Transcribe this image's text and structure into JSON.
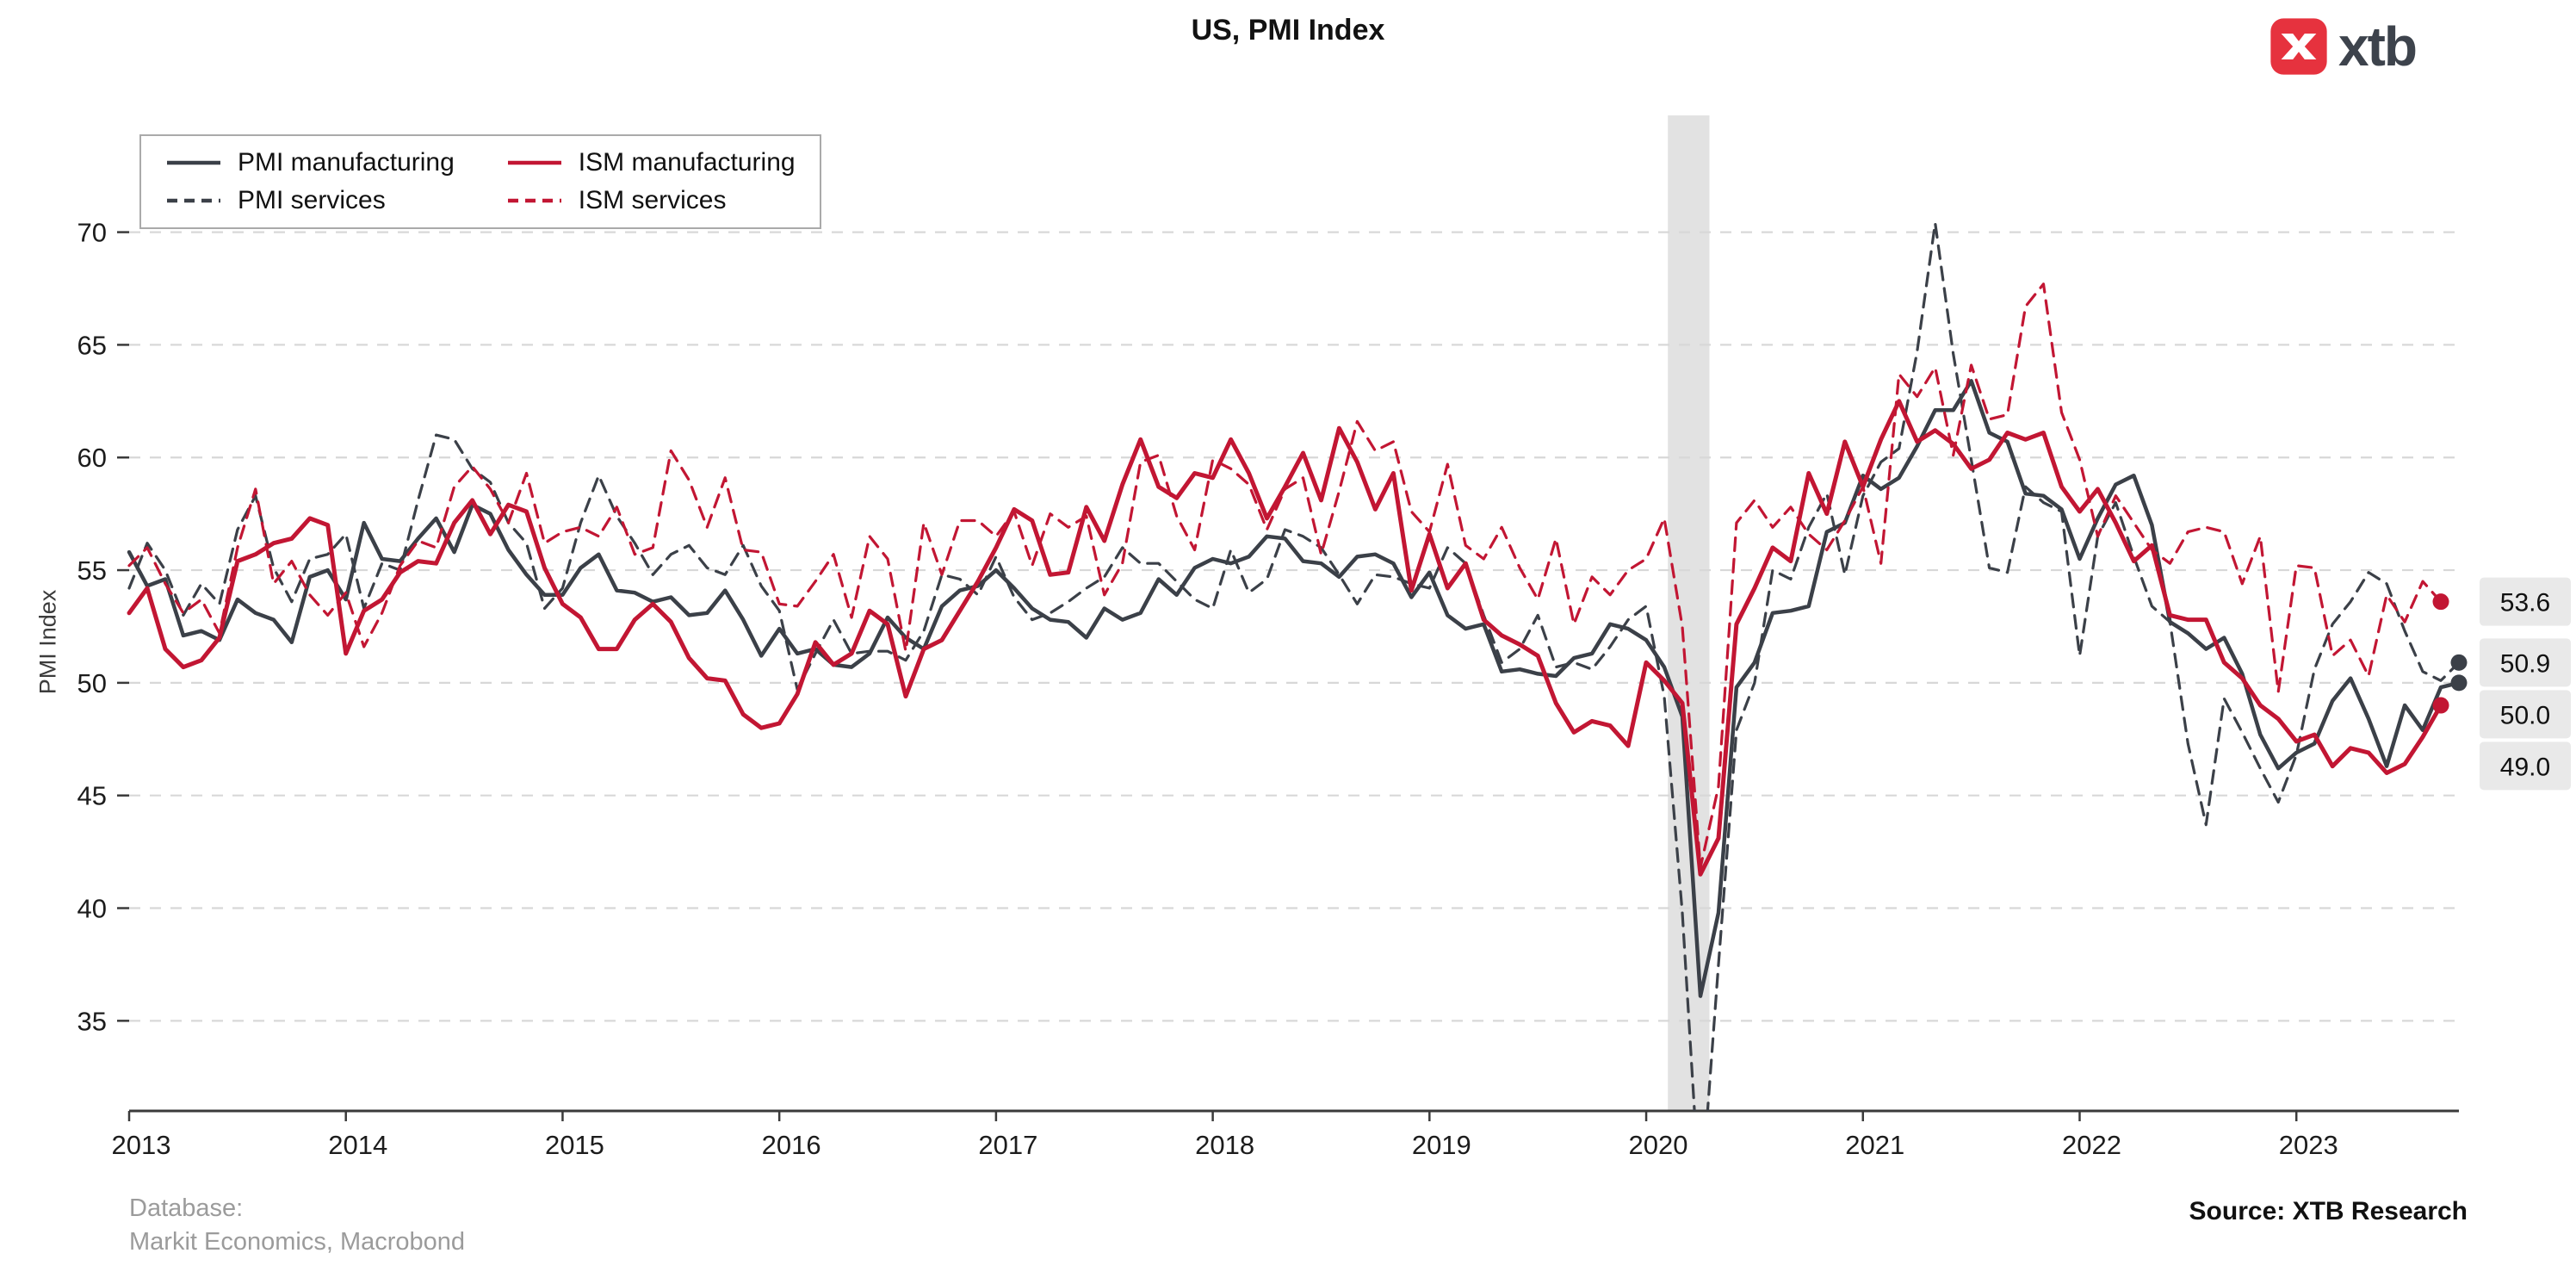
{
  "title": "US, PMI Index",
  "logo": {
    "text": "xtb",
    "icon_color": "#e6323e",
    "icon": "x-arrows-icon"
  },
  "footer": {
    "database_label": "Database:",
    "database_value": "Markit Economics, Macrobond",
    "source": "Source: XTB Research"
  },
  "colors": {
    "dark_series": "#3b4048",
    "red_series": "#c21633",
    "grid": "#d8d8d8",
    "axis": "#3a3a3a",
    "recession_band": "#e2e2e2",
    "end_label_bg": "#e9e9e9"
  },
  "chart_data": {
    "type": "line",
    "title": "US, PMI Index",
    "ylabel": "PMI Index",
    "x_start": "2013-01",
    "frequency": "monthly",
    "x_tick_labels": [
      "2013",
      "2014",
      "2015",
      "2016",
      "2017",
      "2018",
      "2019",
      "2020",
      "2021",
      "2022",
      "2023"
    ],
    "x_tick_month_indices": [
      0,
      12,
      24,
      36,
      48,
      60,
      72,
      84,
      96,
      108,
      120
    ],
    "yticks": [
      35,
      40,
      45,
      50,
      55,
      60,
      65,
      70
    ],
    "ylim": [
      31,
      74.8
    ],
    "grid": "dashed-horizontal",
    "legend_position": "top-left",
    "recession_band_month_range": [
      85.2,
      87.5
    ],
    "series": [
      {
        "name": "PMI manufacturing",
        "color": "#3b4048",
        "dashed": false,
        "width": 4.5,
        "values": [
          55.8,
          54.3,
          54.6,
          52.1,
          52.3,
          51.9,
          53.7,
          53.1,
          52.8,
          51.8,
          54.7,
          55.0,
          53.7,
          57.1,
          55.5,
          55.4,
          56.4,
          57.3,
          55.8,
          57.9,
          57.5,
          55.9,
          54.8,
          53.9,
          53.9,
          55.1,
          55.7,
          54.1,
          54.0,
          53.6,
          53.8,
          53.0,
          53.1,
          54.1,
          52.8,
          51.2,
          52.4,
          51.3,
          51.5,
          50.8,
          50.7,
          51.3,
          52.9,
          52.0,
          51.5,
          53.4,
          54.1,
          54.3,
          55.0,
          54.2,
          53.3,
          52.8,
          52.7,
          52.0,
          53.3,
          52.8,
          53.1,
          54.6,
          53.9,
          55.1,
          55.5,
          55.3,
          55.6,
          56.5,
          56.4,
          55.4,
          55.3,
          54.7,
          55.6,
          55.7,
          55.3,
          53.8,
          54.9,
          53.0,
          52.4,
          52.6,
          50.5,
          50.6,
          50.4,
          50.3,
          51.1,
          51.3,
          52.6,
          52.4,
          51.9,
          50.7,
          48.5,
          36.1,
          39.8,
          49.8,
          50.9,
          53.1,
          53.2,
          53.4,
          56.7,
          57.1,
          59.2,
          58.6,
          59.1,
          60.5,
          62.1,
          62.1,
          63.4,
          61.1,
          60.7,
          58.4,
          58.3,
          57.7,
          55.5,
          57.3,
          58.8,
          59.2,
          57.0,
          52.7,
          52.2,
          51.5,
          52.0,
          50.4,
          47.7,
          46.2,
          46.9,
          47.3,
          49.2,
          50.2,
          48.4,
          46.3,
          49.0,
          47.9,
          49.8,
          50.0
        ]
      },
      {
        "name": "PMI services",
        "color": "#3b4048",
        "dashed": true,
        "width": 3.2,
        "values": [
          54.2,
          56.2,
          55.0,
          53.0,
          54.4,
          53.5,
          56.8,
          58.3,
          55.1,
          53.6,
          55.5,
          55.7,
          56.6,
          53.3,
          55.3,
          55.0,
          58.1,
          61.0,
          60.8,
          59.5,
          58.9,
          57.1,
          56.2,
          53.3,
          54.2,
          57.1,
          59.2,
          57.4,
          56.2,
          54.8,
          55.7,
          56.1,
          55.1,
          54.8,
          56.1,
          54.3,
          53.2,
          49.7,
          51.3,
          52.8,
          51.3,
          51.4,
          51.4,
          51.0,
          52.3,
          54.8,
          54.6,
          53.9,
          55.6,
          53.8,
          52.8,
          53.1,
          53.6,
          54.2,
          54.7,
          56.0,
          55.3,
          55.3,
          54.5,
          53.7,
          53.3,
          55.9,
          54.0,
          54.6,
          56.8,
          56.5,
          56.0,
          54.8,
          53.5,
          54.8,
          54.7,
          54.4,
          54.2,
          56.0,
          55.3,
          53.0,
          50.9,
          51.5,
          53.0,
          50.7,
          50.9,
          50.6,
          51.6,
          52.8,
          53.4,
          49.4,
          39.8,
          26.7,
          37.5,
          47.9,
          50.0,
          55.0,
          54.6,
          56.9,
          58.4,
          54.8,
          58.3,
          59.8,
          60.4,
          64.7,
          70.4,
          64.6,
          59.9,
          55.1,
          54.9,
          58.7,
          58.0,
          57.6,
          51.2,
          56.5,
          58.0,
          55.6,
          53.4,
          52.7,
          47.3,
          43.7,
          49.3,
          47.8,
          46.2,
          44.7,
          46.8,
          50.6,
          52.6,
          53.6,
          54.9,
          54.4,
          52.3,
          50.5,
          50.1,
          50.9
        ]
      },
      {
        "name": "ISM manufacturing",
        "color": "#c21633",
        "dashed": false,
        "width": 5,
        "values": [
          53.1,
          54.2,
          51.5,
          50.7,
          51.0,
          52.0,
          55.4,
          55.7,
          56.2,
          56.4,
          57.3,
          57.0,
          51.3,
          53.2,
          53.7,
          54.9,
          55.4,
          55.3,
          57.1,
          58.1,
          56.6,
          57.9,
          57.6,
          55.1,
          53.5,
          52.9,
          51.5,
          51.5,
          52.8,
          53.5,
          52.7,
          51.1,
          50.2,
          50.1,
          48.6,
          48.0,
          48.2,
          49.5,
          51.8,
          50.8,
          51.3,
          53.2,
          52.6,
          49.4,
          51.5,
          51.9,
          53.2,
          54.5,
          56.0,
          57.7,
          57.2,
          54.8,
          54.9,
          57.8,
          56.3,
          58.8,
          60.8,
          58.7,
          58.2,
          59.3,
          59.1,
          60.8,
          59.3,
          57.3,
          58.7,
          60.2,
          58.1,
          61.3,
          59.8,
          57.7,
          59.3,
          54.1,
          56.6,
          54.2,
          55.3,
          52.8,
          52.1,
          51.7,
          51.2,
          49.1,
          47.8,
          48.3,
          48.1,
          47.2,
          50.9,
          50.1,
          49.1,
          41.5,
          43.1,
          52.6,
          54.2,
          56.0,
          55.4,
          59.3,
          57.5,
          60.7,
          58.7,
          60.8,
          62.5,
          60.7,
          61.2,
          60.6,
          59.5,
          59.9,
          61.1,
          60.8,
          61.1,
          58.7,
          57.6,
          58.6,
          57.1,
          55.4,
          56.1,
          53.0,
          52.8,
          52.8,
          50.9,
          50.2,
          49.0,
          48.4,
          47.4,
          47.7,
          46.3,
          47.1,
          46.9,
          46.0,
          46.4,
          47.6,
          49.0,
          null
        ]
      },
      {
        "name": "ISM services",
        "color": "#c21633",
        "dashed": true,
        "width": 3.2,
        "values": [
          55.2,
          56.0,
          54.4,
          53.1,
          53.7,
          52.2,
          56.0,
          58.6,
          54.4,
          55.4,
          53.9,
          53.0,
          54.0,
          51.6,
          53.1,
          55.2,
          56.3,
          56.0,
          58.7,
          59.6,
          58.6,
          57.1,
          59.3,
          56.2,
          56.7,
          56.9,
          56.5,
          57.8,
          55.7,
          56.0,
          60.3,
          59.0,
          56.9,
          59.1,
          55.9,
          55.8,
          53.5,
          53.4,
          54.5,
          55.7,
          52.9,
          56.5,
          55.5,
          51.4,
          57.1,
          54.8,
          57.2,
          57.2,
          56.5,
          57.6,
          55.2,
          57.5,
          56.9,
          57.4,
          53.9,
          55.3,
          59.8,
          60.1,
          57.4,
          55.9,
          59.9,
          59.5,
          58.8,
          56.8,
          58.6,
          59.1,
          55.7,
          58.5,
          61.6,
          60.3,
          60.7,
          57.6,
          56.7,
          59.7,
          56.1,
          55.5,
          56.9,
          55.1,
          53.7,
          56.4,
          52.6,
          54.7,
          53.9,
          55.0,
          55.5,
          57.3,
          52.5,
          41.8,
          45.4,
          57.1,
          58.1,
          56.9,
          57.8,
          56.6,
          55.9,
          57.2,
          58.7,
          55.3,
          63.7,
          62.7,
          64.0,
          60.1,
          64.1,
          61.7,
          61.9,
          66.7,
          67.7,
          62.0,
          59.9,
          56.5,
          58.3,
          57.1,
          55.9,
          55.3,
          56.7,
          56.9,
          56.7,
          54.4,
          56.5,
          49.6,
          55.2,
          55.1,
          51.2,
          51.9,
          50.3,
          53.9,
          52.7,
          54.5,
          53.6,
          null
        ]
      }
    ],
    "end_labels": [
      {
        "text": "53.6",
        "value": 53.6
      },
      {
        "text": "50.9",
        "value": 50.9
      },
      {
        "text": "50.0",
        "value": 50.0
      },
      {
        "text": "49.0",
        "value": 49.0
      }
    ]
  }
}
